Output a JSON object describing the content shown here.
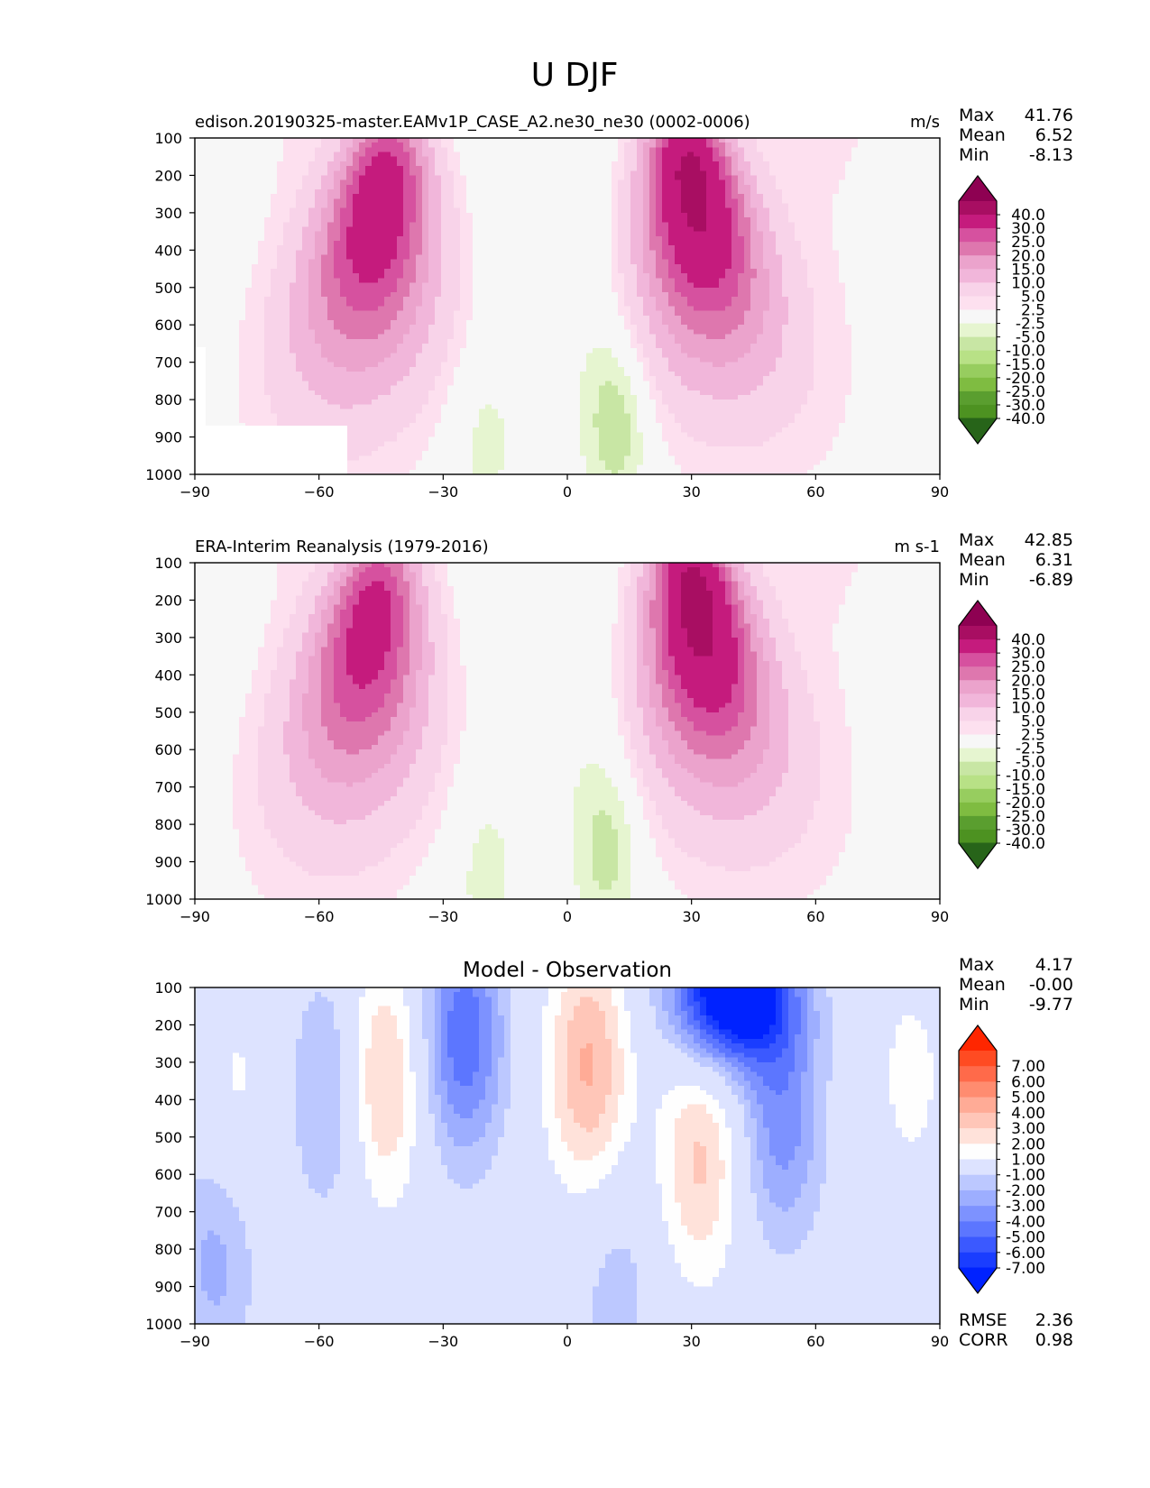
{
  "figure_title": "U DJF",
  "chart_data": [
    {
      "type": "contour",
      "name": "model",
      "title_left": "edison.20190325-master.EAMv1P_CASE_A2.ne30_ne30 (0002-0006)",
      "units": "m/s",
      "stats": {
        "max_label": "Max",
        "max": "41.76",
        "mean_label": "Mean",
        "mean": "6.52",
        "min_label": "Min",
        "min": "-8.13"
      },
      "xlabel": "",
      "ylabel": "",
      "xlim": [
        -90,
        90
      ],
      "ylim": [
        1000,
        100
      ],
      "xticks": [
        "−90",
        "−60",
        "−30",
        "0",
        "30",
        "60",
        "90"
      ],
      "yticks": [
        "100",
        "200",
        "300",
        "400",
        "500",
        "600",
        "700",
        "800",
        "900",
        "1000"
      ],
      "colorbar": {
        "labels": [
          "40.0",
          "30.0",
          "25.0",
          "20.0",
          "15.0",
          "10.0",
          "5.0",
          "2.5",
          "-2.5",
          "-5.0",
          "-10.0",
          "-15.0",
          "-20.0",
          "-25.0",
          "-30.0",
          "-40.0"
        ],
        "colors": [
          "#8e0152",
          "#a80e62",
          "#c51b7d",
          "#d6519f",
          "#de77ae",
          "#eba3cc",
          "#f1b6da",
          "#f8d3e9",
          "#fde0ef",
          "#f7f7f7",
          "#e6f5d0",
          "#c8e6a4",
          "#b8e186",
          "#97cd5f",
          "#7fbc41",
          "#5a9e2f",
          "#4d9221",
          "#276419"
        ]
      },
      "jets": [
        {
          "lat": -45,
          "p": 260,
          "peak": 36
        },
        {
          "lat": 30,
          "p": 215,
          "peak": 41.76
        }
      ],
      "easterlies": [
        {
          "lat": 12,
          "p": 850,
          "peak": -8.13
        },
        {
          "lat": -20,
          "p": 900,
          "peak": -4
        }
      ]
    },
    {
      "type": "contour",
      "name": "obs",
      "title_left": "ERA-Interim Reanalysis (1979-2016)",
      "units": "m s-1",
      "stats": {
        "max_label": "Max",
        "max": "42.85",
        "mean_label": "Mean",
        "mean": "6.31",
        "min_label": "Min",
        "min": "-6.89"
      },
      "xlabel": "",
      "ylabel": "",
      "xlim": [
        -90,
        90
      ],
      "ylim": [
        1000,
        100
      ],
      "xticks": [
        "−90",
        "−60",
        "−30",
        "0",
        "30",
        "60",
        "90"
      ],
      "yticks": [
        "100",
        "200",
        "300",
        "400",
        "500",
        "600",
        "700",
        "800",
        "900",
        "1000"
      ],
      "colorbar": {
        "labels": [
          "40.0",
          "30.0",
          "25.0",
          "20.0",
          "15.0",
          "10.0",
          "5.0",
          "2.5",
          "-2.5",
          "-5.0",
          "-10.0",
          "-15.0",
          "-20.0",
          "-25.0",
          "-30.0",
          "-40.0"
        ],
        "colors": [
          "#8e0152",
          "#a80e62",
          "#c51b7d",
          "#d6519f",
          "#de77ae",
          "#eba3cc",
          "#f1b6da",
          "#f8d3e9",
          "#fde0ef",
          "#f7f7f7",
          "#e6f5d0",
          "#c8e6a4",
          "#b8e186",
          "#97cd5f",
          "#7fbc41",
          "#5a9e2f",
          "#4d9221",
          "#276419"
        ]
      },
      "jets": [
        {
          "lat": -47,
          "p": 250,
          "peak": 33
        },
        {
          "lat": 31,
          "p": 200,
          "peak": 42.85
        }
      ],
      "easterlies": [
        {
          "lat": 10,
          "p": 860,
          "peak": -6.89
        },
        {
          "lat": -20,
          "p": 920,
          "peak": -4
        }
      ]
    },
    {
      "type": "contour",
      "name": "diff",
      "title_center": "Model - Observation",
      "stats": {
        "max_label": "Max",
        "max": "4.17",
        "mean_label": "Mean",
        "mean": "-0.00",
        "min_label": "Min",
        "min": "-9.77"
      },
      "extra_stats": {
        "rmse_label": "RMSE",
        "rmse": "2.36",
        "corr_label": "CORR",
        "corr": "0.98"
      },
      "xlabel": "",
      "ylabel": "",
      "xlim": [
        -90,
        90
      ],
      "ylim": [
        1000,
        100
      ],
      "xticks": [
        "−90",
        "−60",
        "−30",
        "0",
        "30",
        "60",
        "90"
      ],
      "yticks": [
        "100",
        "200",
        "300",
        "400",
        "500",
        "600",
        "700",
        "800",
        "900",
        "1000"
      ],
      "colorbar": {
        "labels": [
          "7.00",
          "6.00",
          "5.00",
          "4.00",
          "3.00",
          "2.00",
          "1.00",
          "-1.00",
          "-2.00",
          "-3.00",
          "-4.00",
          "-5.00",
          "-6.00",
          "-7.00"
        ],
        "colors": [
          "#ff2600",
          "#ff4b22",
          "#ff6a4a",
          "#ff8c70",
          "#ffab96",
          "#ffc6b8",
          "#ffe2da",
          "#fefefe",
          "#dde3ff",
          "#bcc8ff",
          "#9daeff",
          "#7d92ff",
          "#5c76ff",
          "#3b59ff",
          "#1a3dff",
          "#0022ff"
        ]
      },
      "features": [
        {
          "lat": -45,
          "p": 350,
          "value": 3.6
        },
        {
          "lat": 5,
          "p": 310,
          "value": 4.17
        },
        {
          "lat": 32,
          "p": 560,
          "value": 3.2
        },
        {
          "lat": -80,
          "p": 400,
          "value": 1.3
        },
        {
          "lat": 83,
          "p": 340,
          "value": 1.3
        },
        {
          "lat": -57,
          "p": 380,
          "value": -2.6
        },
        {
          "lat": -25,
          "p": 230,
          "value": -4.8
        },
        {
          "lat": 40,
          "p": 120,
          "value": -9.77
        },
        {
          "lat": 52,
          "p": 450,
          "value": -3.6
        },
        {
          "lat": 12,
          "p": 920,
          "value": -1.5
        },
        {
          "lat": -85,
          "p": 820,
          "value": -2.4
        }
      ]
    }
  ]
}
